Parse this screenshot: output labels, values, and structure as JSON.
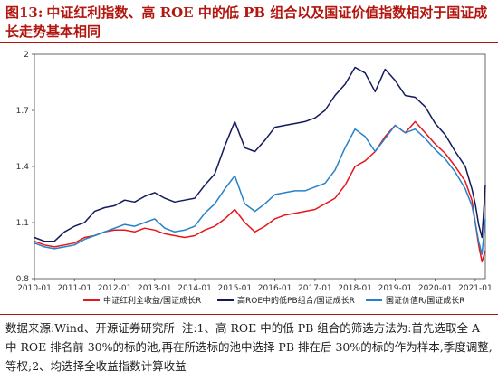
{
  "figure": {
    "label": "图13:",
    "title": "中证红利指数、高 ROE 中的低 PB 组合以及国证价值指数相对于国证成长走势基本相同"
  },
  "note": {
    "source": "数据来源:Wind、开源证券研究所",
    "text": "注:1、高 ROE 中的低 PB 组合的筛选方法为:首先选取全 A 中 ROE 排名前 30%的标的池,再在所选标的池中选择 PB 排在后 30%的标的作为样本,季度调整,等权;2、均选择全收益指数计算收益"
  },
  "chart_data": {
    "type": "line",
    "x_type": "date",
    "xlim": [
      "2010-01",
      "2021-04"
    ],
    "ylim": [
      0.8,
      2.0
    ],
    "y_ticks": [
      0.8,
      1.1,
      1.4,
      1.7,
      2.0
    ],
    "y_tick_labels": [
      "0.8",
      "1.1",
      "1.4",
      "1.7",
      "2"
    ],
    "x_ticks": [
      "2010-01",
      "2011-01",
      "2012-01",
      "2013-01",
      "2014-01",
      "2015-01",
      "2016-01",
      "2017-01",
      "2018-01",
      "2019-01",
      "2020-01",
      "2021-01"
    ],
    "x_tick_labels": [
      "2010-01",
      "2011-01",
      "2012-01",
      "2013-01",
      "2014-01",
      "2015-01",
      "2016-01",
      "2017-01",
      "2018-01",
      "2019-01",
      "2020-01",
      "2021-01"
    ],
    "grid": false,
    "legend_position": "bottom",
    "series": [
      {
        "name": "中证红利全收益/国证成长R",
        "color": "#e8151b",
        "x": [
          "2010-01",
          "2010-04",
          "2010-07",
          "2010-10",
          "2011-01",
          "2011-04",
          "2011-07",
          "2011-10",
          "2012-01",
          "2012-04",
          "2012-07",
          "2012-10",
          "2013-01",
          "2013-04",
          "2013-07",
          "2013-10",
          "2014-01",
          "2014-04",
          "2014-07",
          "2014-10",
          "2015-01",
          "2015-04",
          "2015-07",
          "2015-10",
          "2016-01",
          "2016-04",
          "2016-07",
          "2016-10",
          "2017-01",
          "2017-04",
          "2017-07",
          "2017-10",
          "2018-01",
          "2018-04",
          "2018-07",
          "2018-10",
          "2019-01",
          "2019-04",
          "2019-07",
          "2019-10",
          "2020-01",
          "2020-04",
          "2020-07",
          "2020-10",
          "2020-12",
          "2021-01",
          "2021-02",
          "2021-03",
          "2021-04"
        ],
        "values": [
          1.0,
          0.98,
          0.97,
          0.98,
          0.99,
          1.02,
          1.03,
          1.05,
          1.06,
          1.06,
          1.05,
          1.07,
          1.06,
          1.04,
          1.03,
          1.02,
          1.03,
          1.06,
          1.08,
          1.12,
          1.17,
          1.1,
          1.05,
          1.08,
          1.12,
          1.14,
          1.15,
          1.16,
          1.17,
          1.2,
          1.23,
          1.3,
          1.4,
          1.43,
          1.48,
          1.56,
          1.62,
          1.58,
          1.64,
          1.58,
          1.52,
          1.47,
          1.4,
          1.32,
          1.22,
          1.1,
          0.98,
          0.89,
          0.95
        ]
      },
      {
        "name": "高ROE中的低PB组合/国证成长R",
        "color": "#121a5c",
        "x": [
          "2010-01",
          "2010-04",
          "2010-07",
          "2010-10",
          "2011-01",
          "2011-04",
          "2011-07",
          "2011-10",
          "2012-01",
          "2012-04",
          "2012-07",
          "2012-10",
          "2013-01",
          "2013-04",
          "2013-07",
          "2013-10",
          "2014-01",
          "2014-04",
          "2014-07",
          "2014-10",
          "2015-01",
          "2015-04",
          "2015-07",
          "2015-10",
          "2016-01",
          "2016-04",
          "2016-07",
          "2016-10",
          "2017-01",
          "2017-04",
          "2017-07",
          "2017-10",
          "2018-01",
          "2018-04",
          "2018-07",
          "2018-10",
          "2019-01",
          "2019-04",
          "2019-07",
          "2019-10",
          "2020-01",
          "2020-04",
          "2020-07",
          "2020-10",
          "2020-12",
          "2021-01",
          "2021-02",
          "2021-03",
          "2021-04"
        ],
        "values": [
          1.02,
          1.0,
          1.0,
          1.05,
          1.08,
          1.1,
          1.16,
          1.18,
          1.19,
          1.22,
          1.21,
          1.24,
          1.26,
          1.23,
          1.21,
          1.22,
          1.23,
          1.3,
          1.36,
          1.51,
          1.64,
          1.5,
          1.48,
          1.54,
          1.61,
          1.62,
          1.63,
          1.64,
          1.66,
          1.7,
          1.78,
          1.84,
          1.93,
          1.9,
          1.8,
          1.92,
          1.86,
          1.78,
          1.77,
          1.72,
          1.63,
          1.57,
          1.48,
          1.4,
          1.28,
          1.2,
          1.09,
          1.02,
          1.3
        ]
      },
      {
        "name": "国证价值R/国证成长R",
        "color": "#2880c8",
        "x": [
          "2010-01",
          "2010-04",
          "2010-07",
          "2010-10",
          "2011-01",
          "2011-04",
          "2011-07",
          "2011-10",
          "2012-01",
          "2012-04",
          "2012-07",
          "2012-10",
          "2013-01",
          "2013-04",
          "2013-07",
          "2013-10",
          "2014-01",
          "2014-04",
          "2014-07",
          "2014-10",
          "2015-01",
          "2015-04",
          "2015-07",
          "2015-10",
          "2016-01",
          "2016-04",
          "2016-07",
          "2016-10",
          "2017-01",
          "2017-04",
          "2017-07",
          "2017-10",
          "2018-01",
          "2018-04",
          "2018-07",
          "2018-10",
          "2019-01",
          "2019-04",
          "2019-07",
          "2019-10",
          "2020-01",
          "2020-04",
          "2020-07",
          "2020-10",
          "2020-12",
          "2021-01",
          "2021-02",
          "2021-03",
          "2021-04"
        ],
        "values": [
          0.99,
          0.97,
          0.96,
          0.97,
          0.98,
          1.01,
          1.03,
          1.05,
          1.07,
          1.09,
          1.08,
          1.1,
          1.12,
          1.07,
          1.05,
          1.06,
          1.08,
          1.15,
          1.2,
          1.28,
          1.35,
          1.2,
          1.16,
          1.2,
          1.25,
          1.26,
          1.27,
          1.27,
          1.29,
          1.31,
          1.38,
          1.5,
          1.6,
          1.56,
          1.48,
          1.55,
          1.62,
          1.58,
          1.6,
          1.55,
          1.49,
          1.44,
          1.37,
          1.28,
          1.19,
          1.1,
          1.0,
          0.93,
          1.12
        ]
      }
    ]
  }
}
